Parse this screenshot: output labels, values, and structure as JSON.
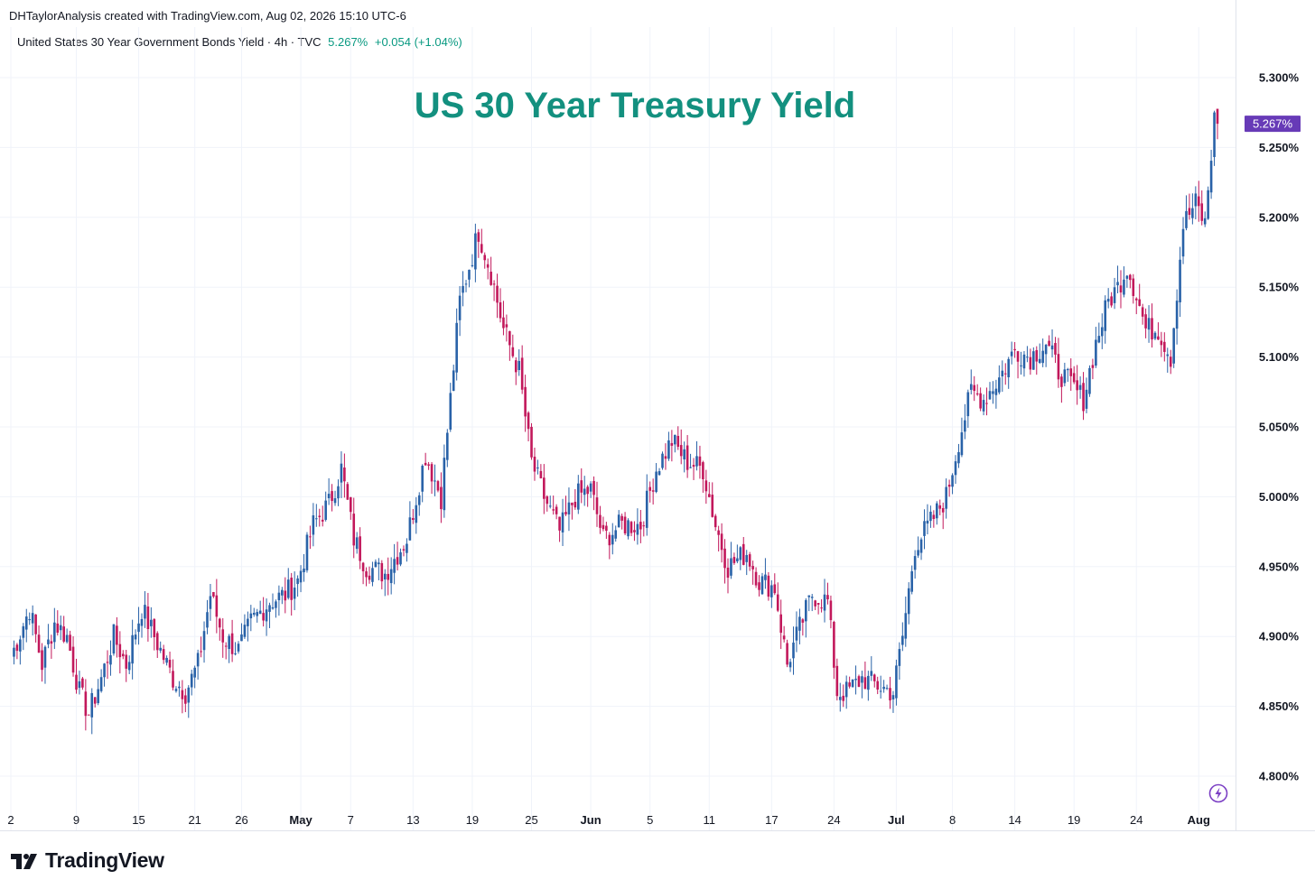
{
  "header": {
    "credit": "DHTaylorAnalysis created with TradingView.com, Aug 02, 2026 15:10 UTC-6",
    "symbol": "United States 30 Year Government Bonds Yield · 4h · TVC",
    "last_price": "5.267%",
    "change": "+0.054 (+1.04%)"
  },
  "footer": {
    "brand": "TradingView",
    "logo_icon": "tradingview-logo-icon",
    "alert_icon": "lightning-icon"
  },
  "colors": {
    "up": "#2962a8",
    "down": "#c2185b",
    "title": "#13907f",
    "price_tag": "#673ab7",
    "grid": "#f0f3fa"
  },
  "chart_data": {
    "type": "candlestick",
    "title": "US 30 Year Treasury Yield",
    "ylabel": "",
    "xlabel": "",
    "ylim": [
      4.78,
      5.31
    ],
    "y_ticks": [
      "5.300%",
      "5.250%",
      "5.200%",
      "5.150%",
      "5.100%",
      "5.050%",
      "5.000%",
      "4.950%",
      "4.900%",
      "4.850%",
      "4.800%"
    ],
    "y_tick_values": [
      5.3,
      5.25,
      5.2,
      5.15,
      5.1,
      5.05,
      5.0,
      4.95,
      4.9,
      4.85,
      4.8
    ],
    "x_ticks": [
      "2",
      "9",
      "15",
      "21",
      "26",
      "May",
      "7",
      "13",
      "19",
      "25",
      "Jun",
      "5",
      "11",
      "17",
      "24",
      "Jul",
      "8",
      "14",
      "19",
      "24",
      "Aug"
    ],
    "x_tick_bold": [
      false,
      false,
      false,
      false,
      false,
      true,
      false,
      false,
      false,
      false,
      true,
      false,
      false,
      false,
      false,
      true,
      false,
      false,
      false,
      false,
      true
    ],
    "x_tick_index": [
      0,
      21,
      41,
      59,
      74,
      93,
      109,
      129,
      148,
      167,
      186,
      205,
      224,
      244,
      264,
      284,
      302,
      322,
      341,
      361,
      381
    ],
    "current_price_label": "5.267%",
    "current_price": 5.267,
    "grid": true,
    "path": [
      [
        0,
        4.885
      ],
      [
        6,
        4.92
      ],
      [
        10,
        4.88
      ],
      [
        14,
        4.91
      ],
      [
        18,
        4.9
      ],
      [
        22,
        4.86
      ],
      [
        25,
        4.845
      ],
      [
        29,
        4.87
      ],
      [
        33,
        4.9
      ],
      [
        37,
        4.88
      ],
      [
        42,
        4.92
      ],
      [
        48,
        4.89
      ],
      [
        52,
        4.87
      ],
      [
        56,
        4.86
      ],
      [
        60,
        4.88
      ],
      [
        64,
        4.93
      ],
      [
        68,
        4.9
      ],
      [
        73,
        4.89
      ],
      [
        77,
        4.91
      ],
      [
        83,
        4.925
      ],
      [
        88,
        4.93
      ],
      [
        92,
        4.94
      ],
      [
        97,
        4.98
      ],
      [
        102,
        4.995
      ],
      [
        106,
        5.02
      ],
      [
        110,
        4.97
      ],
      [
        114,
        4.95
      ],
      [
        120,
        4.945
      ],
      [
        127,
        4.97
      ],
      [
        133,
        5.03
      ],
      [
        138,
        5.0
      ],
      [
        144,
        5.14
      ],
      [
        150,
        5.19
      ],
      [
        154,
        5.16
      ],
      [
        158,
        5.12
      ],
      [
        163,
        5.09
      ],
      [
        167,
        5.025
      ],
      [
        171,
        5.0
      ],
      [
        176,
        4.975
      ],
      [
        181,
        5.0
      ],
      [
        186,
        5.005
      ],
      [
        190,
        4.97
      ],
      [
        196,
        4.98
      ],
      [
        202,
        4.98
      ],
      [
        207,
        5.02
      ],
      [
        212,
        5.04
      ],
      [
        217,
        5.025
      ],
      [
        222,
        5.02
      ],
      [
        226,
        4.98
      ],
      [
        230,
        4.95
      ],
      [
        236,
        4.96
      ],
      [
        240,
        4.94
      ],
      [
        245,
        4.935
      ],
      [
        249,
        4.88
      ],
      [
        252,
        4.9
      ],
      [
        257,
        4.93
      ],
      [
        262,
        4.925
      ],
      [
        265,
        4.86
      ],
      [
        268,
        4.86
      ],
      [
        273,
        4.87
      ],
      [
        278,
        4.865
      ],
      [
        283,
        4.86
      ],
      [
        286,
        4.9
      ],
      [
        290,
        4.965
      ],
      [
        296,
        4.985
      ],
      [
        300,
        5.0
      ],
      [
        304,
        5.04
      ],
      [
        308,
        5.075
      ],
      [
        312,
        5.07
      ],
      [
        317,
        5.085
      ],
      [
        322,
        5.105
      ],
      [
        327,
        5.1
      ],
      [
        332,
        5.11
      ],
      [
        336,
        5.09
      ],
      [
        340,
        5.08
      ],
      [
        344,
        5.07
      ],
      [
        348,
        5.11
      ],
      [
        352,
        5.14
      ],
      [
        355,
        5.15
      ],
      [
        358,
        5.165
      ],
      [
        361,
        5.145
      ],
      [
        364,
        5.12
      ],
      [
        368,
        5.12
      ],
      [
        372,
        5.1
      ],
      [
        376,
        5.195
      ],
      [
        380,
        5.21
      ],
      [
        383,
        5.195
      ],
      [
        386,
        5.27
      ]
    ]
  }
}
